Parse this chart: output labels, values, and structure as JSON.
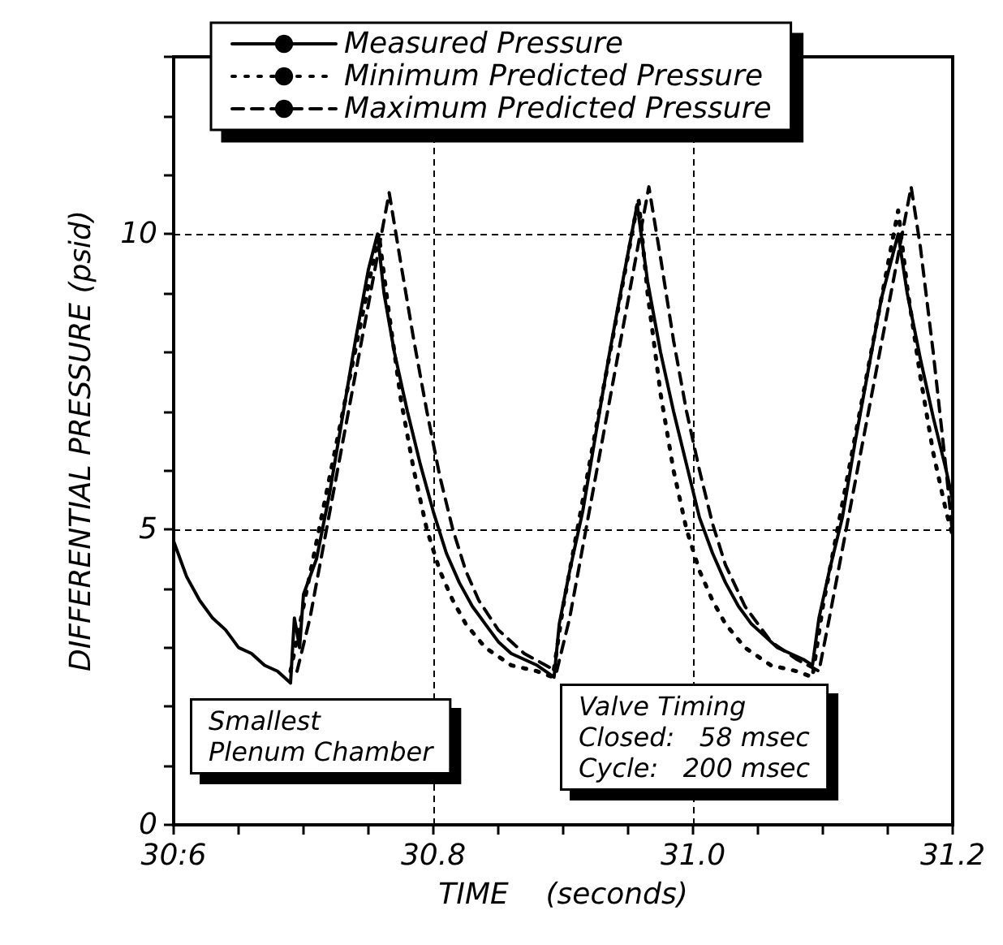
{
  "chart_data": {
    "type": "line",
    "xlabel": "TIME    (seconds)",
    "ylabel": "DIFFERENTIAL PRESSURE (psid)",
    "xlim": [
      30.6,
      31.2
    ],
    "xticks": [
      {
        "value": 30.6,
        "label": "30:6"
      },
      {
        "value": 30.65,
        "label": null
      },
      {
        "value": 30.7,
        "label": null
      },
      {
        "value": 30.75,
        "label": null
      },
      "30.8",
      {
        "value": 30.85,
        "label": null
      },
      {
        "value": 30.9,
        "label": null
      },
      {
        "value": 30.95,
        "label": null
      },
      {
        "value": 31.0,
        "label": "31.0"
      },
      {
        "value": 31.05,
        "label": null
      },
      {
        "value": 31.1,
        "label": null
      },
      {
        "value": 31.15,
        "label": null
      },
      31.2
    ],
    "ylim": [
      0,
      13
    ],
    "yticks": [
      0,
      {
        "value": 1,
        "label": null
      },
      {
        "value": 2,
        "label": null
      },
      {
        "value": 3,
        "label": null
      },
      {
        "value": 4,
        "label": null
      },
      5,
      {
        "value": 6,
        "label": null
      },
      {
        "value": 7,
        "label": null
      },
      {
        "value": 8,
        "label": null
      },
      {
        "value": 9,
        "label": null
      },
      10,
      {
        "value": 11,
        "label": null
      },
      {
        "value": 12,
        "label": null
      },
      {
        "value": 13,
        "label": null
      }
    ],
    "grid": true,
    "legend": "top",
    "marker": "none",
    "annotations": [
      "Smallest\nPlenum Chamber",
      "Valve Timing\nClosed:   58 msec\nCycle:   200 msec"
    ],
    "series": [
      {
        "name": "Measured Pressure",
        "color": "#000000",
        "line_style": "solid",
        "x": [
          30.6,
          30.61,
          30.62,
          30.63,
          30.64,
          30.65,
          30.66,
          30.67,
          30.68,
          30.69,
          30.693,
          30.697,
          30.7,
          30.71,
          30.72,
          30.73,
          30.74,
          30.75,
          30.757,
          30.762,
          30.77,
          30.78,
          30.79,
          30.8,
          30.81,
          30.82,
          30.83,
          30.84,
          30.85,
          30.86,
          30.87,
          30.88,
          30.893,
          30.897,
          30.905,
          30.915,
          30.925,
          30.935,
          30.945,
          30.957,
          30.965,
          30.975,
          30.985,
          30.995,
          31.005,
          31.015,
          31.025,
          31.035,
          31.045,
          31.055,
          31.065,
          31.075,
          31.085,
          31.092,
          31.097,
          31.105,
          31.115,
          31.125,
          31.135,
          31.145,
          31.158,
          31.165,
          31.175,
          31.185,
          31.195,
          31.2
        ],
        "values": [
          4.8,
          4.2,
          3.8,
          3.5,
          3.3,
          3.0,
          2.9,
          2.7,
          2.6,
          2.4,
          3.5,
          3.0,
          3.9,
          4.5,
          5.6,
          6.9,
          8.2,
          9.4,
          10.0,
          9.0,
          8.0,
          7.0,
          6.1,
          5.3,
          4.6,
          4.1,
          3.7,
          3.4,
          3.1,
          2.9,
          2.8,
          2.7,
          2.5,
          3.4,
          4.3,
          5.3,
          6.6,
          7.9,
          9.1,
          10.5,
          9.2,
          8.0,
          7.0,
          6.1,
          5.2,
          4.6,
          4.1,
          3.7,
          3.4,
          3.2,
          3.0,
          2.9,
          2.8,
          2.7,
          3.5,
          4.3,
          5.2,
          6.5,
          7.7,
          8.9,
          10.0,
          9.0,
          7.9,
          6.9,
          6.0,
          5.5
        ]
      },
      {
        "name": "Minimum Predicted Pressure",
        "color": "#000000",
        "line_style": "dotted",
        "x": [
          30.69,
          30.7,
          30.758,
          30.765,
          30.775,
          30.785,
          30.795,
          30.805,
          30.815,
          30.825,
          30.84,
          30.86,
          30.88,
          30.892,
          30.9,
          30.958,
          30.965,
          30.975,
          30.985,
          30.995,
          31.005,
          31.015,
          31.025,
          31.04,
          31.06,
          31.08,
          31.092,
          31.1,
          31.158,
          31.165,
          31.175,
          31.185,
          31.195,
          31.2
        ],
        "values": [
          2.6,
          3.7,
          10.0,
          8.8,
          7.2,
          6.0,
          5.0,
          4.3,
          3.8,
          3.4,
          3.0,
          2.7,
          2.6,
          2.5,
          3.7,
          10.6,
          9.0,
          7.3,
          6.0,
          5.0,
          4.3,
          3.8,
          3.4,
          3.0,
          2.7,
          2.6,
          2.5,
          3.7,
          10.4,
          9.1,
          7.6,
          6.3,
          5.3,
          4.9
        ]
      },
      {
        "name": "Maximum Predicted Pressure",
        "color": "#000000",
        "line_style": "dashed",
        "x": [
          30.695,
          30.705,
          30.766,
          30.775,
          30.785,
          30.795,
          30.805,
          30.815,
          30.825,
          30.835,
          30.85,
          30.87,
          30.895,
          30.905,
          30.966,
          30.975,
          30.985,
          30.995,
          31.005,
          31.015,
          31.025,
          31.04,
          31.06,
          31.08,
          31.097,
          31.105,
          31.168,
          31.175,
          31.185,
          31.195,
          31.2
        ],
        "values": [
          2.6,
          3.5,
          10.7,
          9.5,
          8.2,
          7.0,
          5.9,
          5.0,
          4.3,
          3.8,
          3.3,
          2.9,
          2.6,
          3.5,
          10.8,
          9.6,
          8.2,
          7.0,
          6.0,
          5.1,
          4.4,
          3.7,
          3.1,
          2.8,
          2.6,
          3.5,
          10.8,
          9.8,
          8.0,
          6.0,
          4.9
        ]
      }
    ]
  }
}
